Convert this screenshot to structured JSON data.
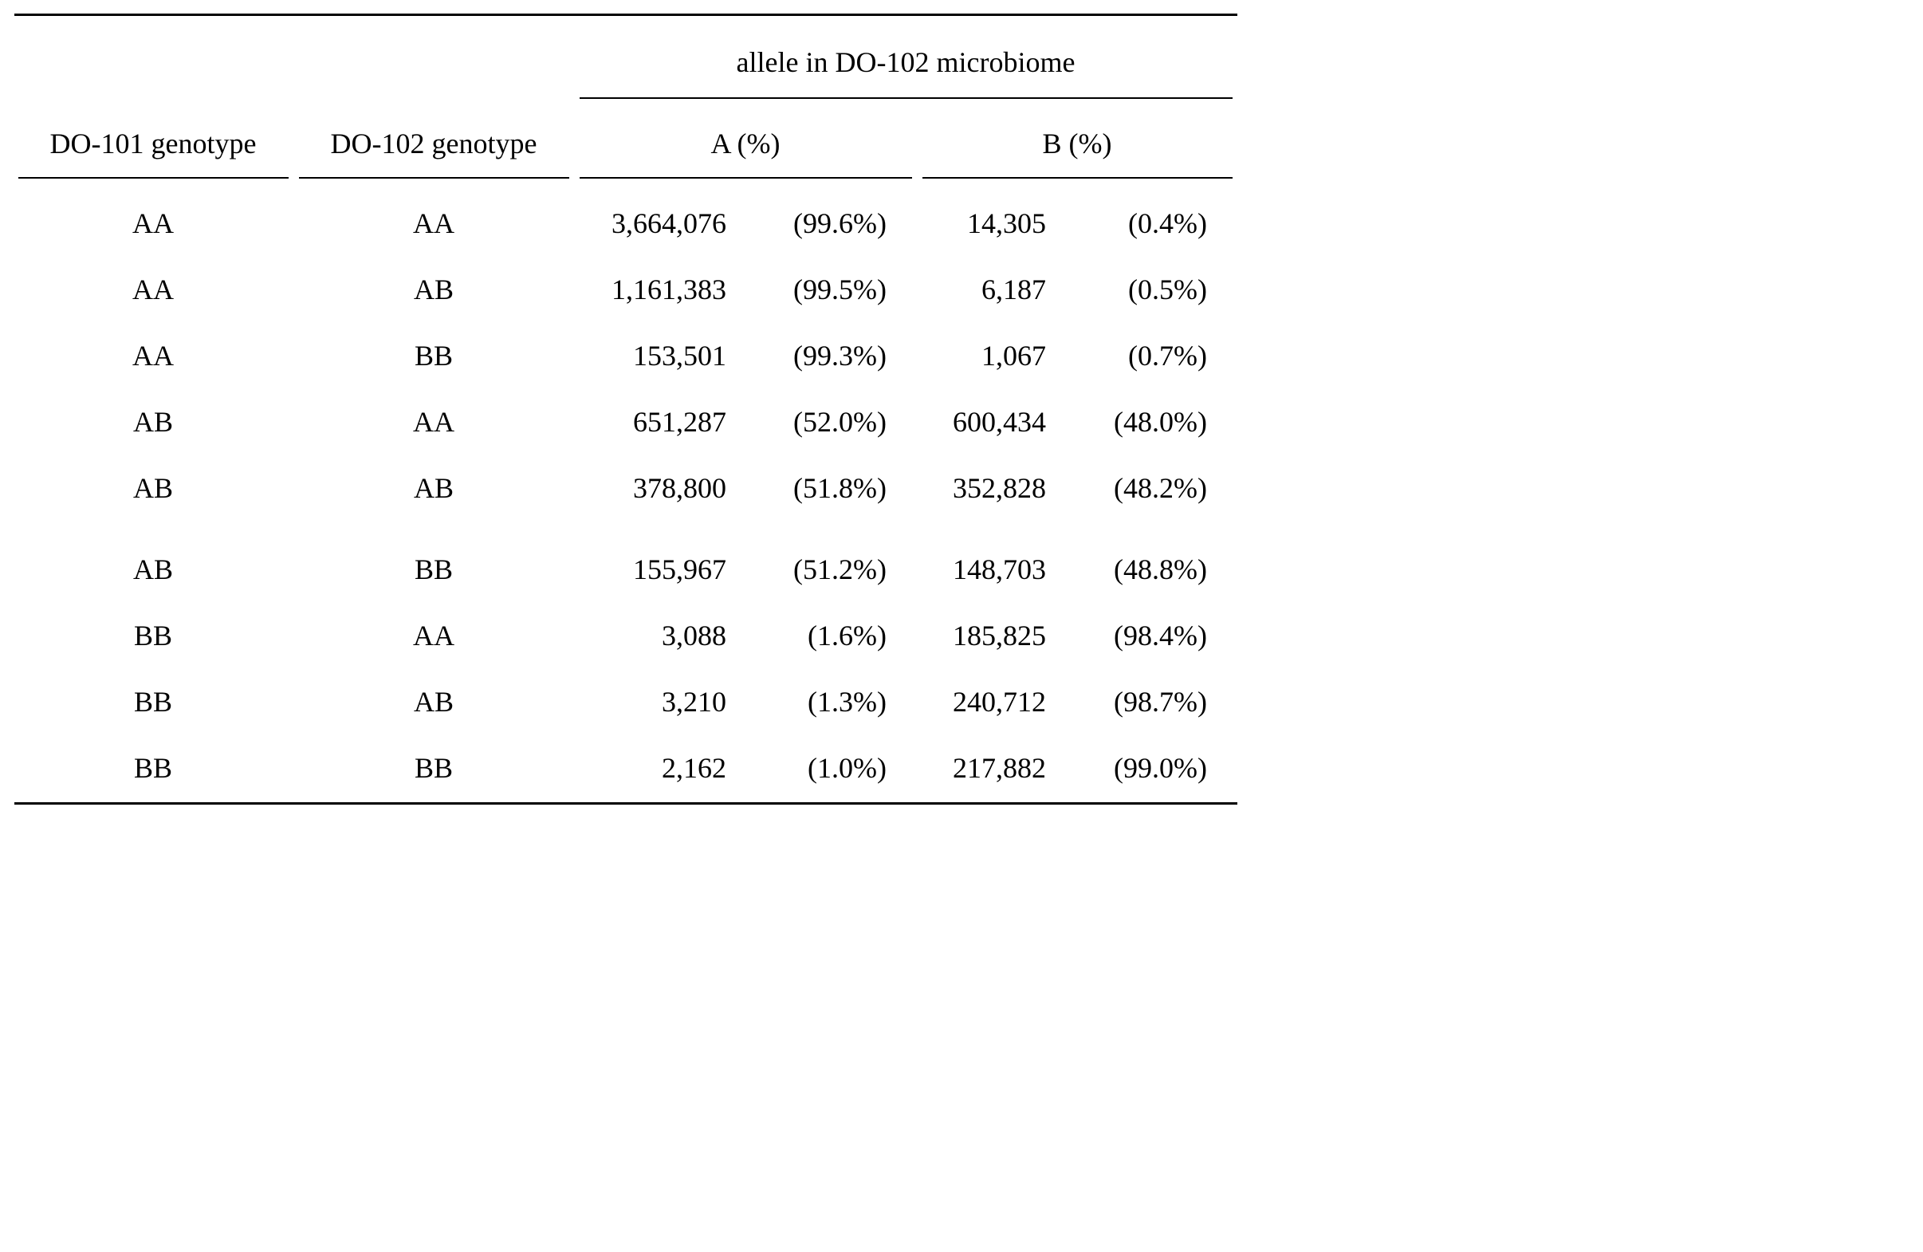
{
  "table": {
    "spanner": "allele in DO-102 microbiome",
    "headers": {
      "do101": "DO-101 genotype",
      "do102": "DO-102 genotype",
      "a": "A (%)",
      "b": "B (%)"
    },
    "rows": [
      {
        "g101": "AA",
        "g102": "AA",
        "a_count": "3,664,076",
        "a_pct": "(99.6%)",
        "b_count": "14,305",
        "b_pct": "(0.4%)"
      },
      {
        "g101": "AA",
        "g102": "AB",
        "a_count": "1,161,383",
        "a_pct": "(99.5%)",
        "b_count": "6,187",
        "b_pct": "(0.5%)"
      },
      {
        "g101": "AA",
        "g102": "BB",
        "a_count": "153,501",
        "a_pct": "(99.3%)",
        "b_count": "1,067",
        "b_pct": "(0.7%)"
      },
      {
        "g101": "AB",
        "g102": "AA",
        "a_count": "651,287",
        "a_pct": "(52.0%)",
        "b_count": "600,434",
        "b_pct": "(48.0%)"
      },
      {
        "g101": "AB",
        "g102": "AB",
        "a_count": "378,800",
        "a_pct": "(51.8%)",
        "b_count": "352,828",
        "b_pct": "(48.2%)"
      },
      {
        "g101": "AB",
        "g102": "BB",
        "a_count": "155,967",
        "a_pct": "(51.2%)",
        "b_count": "148,703",
        "b_pct": "(48.8%)"
      },
      {
        "g101": "BB",
        "g102": "AA",
        "a_count": "3,088",
        "a_pct": "(1.6%)",
        "b_count": "185,825",
        "b_pct": "(98.4%)"
      },
      {
        "g101": "BB",
        "g102": "AB",
        "a_count": "3,210",
        "a_pct": "(1.3%)",
        "b_count": "240,712",
        "b_pct": "(98.7%)"
      },
      {
        "g101": "BB",
        "g102": "BB",
        "a_count": "2,162",
        "a_pct": "(1.0%)",
        "b_count": "217,882",
        "b_pct": "(99.0%)"
      }
    ]
  }
}
